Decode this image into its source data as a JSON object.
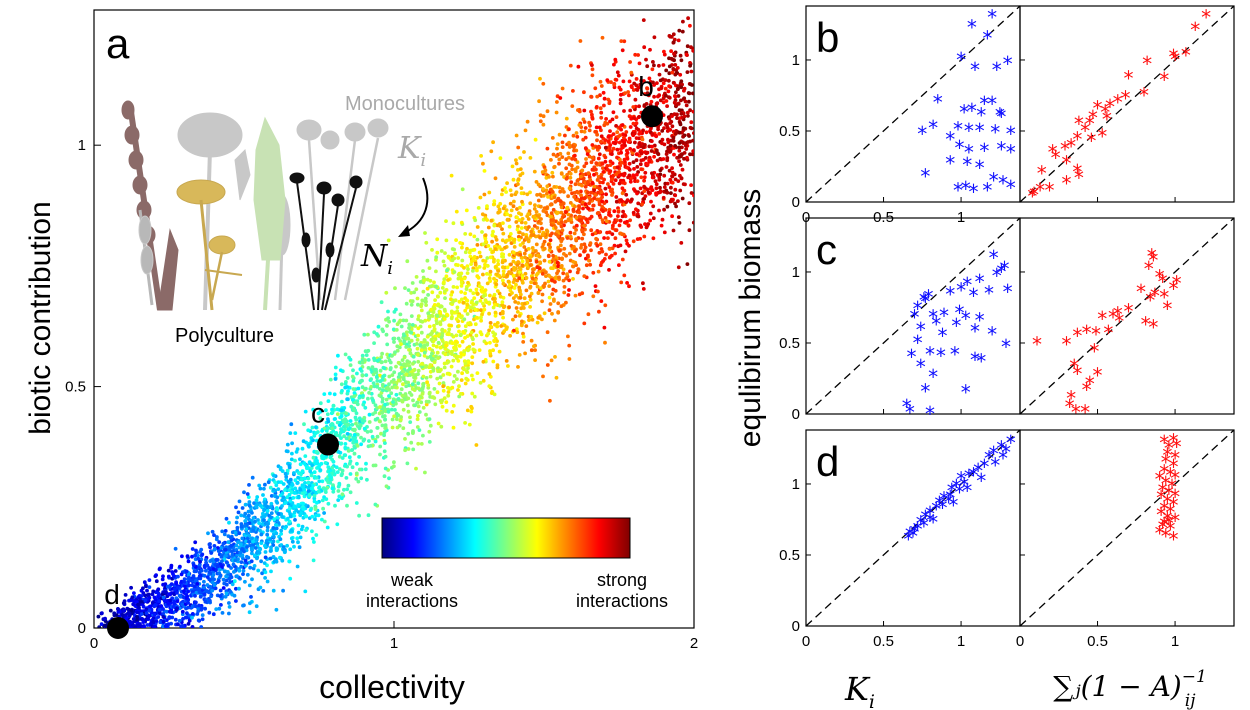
{
  "colors": {
    "mono_series": "#1010ff",
    "sum_series": "#ff1010",
    "marker": "#000000",
    "inset_gray": "#a9a9a9",
    "diag_line": "#000000"
  },
  "labels": {
    "panel_a": "a",
    "panel_b": "b",
    "panel_c": "c",
    "panel_d": "d",
    "point_b": "b",
    "point_c": "c",
    "point_d": "d",
    "monocultures": "Monocultures",
    "polyculture": "Polyculture",
    "K_i": "K",
    "K_sub": "i",
    "N_i": "N",
    "N_sub": "i",
    "colorbar_left": [
      "weak",
      "interactions"
    ],
    "colorbar_right": [
      "strong",
      "interactions"
    ],
    "right_ylabel": "equlibirum biomass",
    "right_xlabel_left_var": "K",
    "right_xlabel_left_sub": "i",
    "right_xlabel_right": "∑ⱼ(1 − A)",
    "right_xlabel_right_sup": "−1",
    "right_xlabel_right_sub": "ij"
  },
  "chart_data": [
    {
      "type": "scatter",
      "panel": "a",
      "xlabel": "collectivity",
      "ylabel": "biotic contribution",
      "xlim": [
        0,
        2
      ],
      "ylim": [
        0,
        1.28
      ],
      "xticks": [
        "0",
        "1",
        "2"
      ],
      "yticks": [
        "0",
        "0.5",
        "1"
      ],
      "grid": false,
      "colorbar": {
        "colormap": "jet",
        "low_label": "weak interactions",
        "high_label": "strong interactions",
        "placement": "bottom-right"
      },
      "approx_point_count": 5000,
      "cloud_trend": [
        [
          0.05,
          0.0
        ],
        [
          0.3,
          0.07
        ],
        [
          0.6,
          0.22
        ],
        [
          0.9,
          0.45
        ],
        [
          1.2,
          0.64
        ],
        [
          1.5,
          0.82
        ],
        [
          1.8,
          0.98
        ],
        [
          2.0,
          1.07
        ]
      ],
      "highlighted_points": [
        {
          "label": "b",
          "x": 1.86,
          "y": 1.06
        },
        {
          "label": "c",
          "x": 0.78,
          "y": 0.38
        },
        {
          "label": "d",
          "x": 0.08,
          "y": 0.0
        }
      ]
    },
    {
      "type": "scatter",
      "panel": "b",
      "grid_position": "row 1",
      "xlim": [
        0,
        1.38
      ],
      "ylim": [
        0,
        1.38
      ],
      "xticks": [
        "0",
        "0.5",
        "1"
      ],
      "yticks": [
        "0",
        "0.5",
        "1"
      ],
      "diagonal": "y=x dashed",
      "series": [
        {
          "name": "",
          "marker": "*",
          "color": "blue",
          "points": [
            [
              1.2,
              1.3
            ],
            [
              0.85,
              0.7
            ],
            [
              1.07,
              1.23
            ],
            [
              1.17,
              1.15
            ],
            [
              1.3,
              0.97
            ],
            [
              1.23,
              0.93
            ],
            [
              1.0,
              1.0
            ],
            [
              1.09,
              0.93
            ],
            [
              1.15,
              0.69
            ],
            [
              1.07,
              0.64
            ],
            [
              1.2,
              0.69
            ],
            [
              1.25,
              0.61
            ],
            [
              1.26,
              0.6
            ],
            [
              1.02,
              0.63
            ],
            [
              1.13,
              0.61
            ],
            [
              0.82,
              0.52
            ],
            [
              0.98,
              0.51
            ],
            [
              0.75,
              0.48
            ],
            [
              1.05,
              0.5
            ],
            [
              1.12,
              0.5
            ],
            [
              1.22,
              0.49
            ],
            [
              1.32,
              0.48
            ],
            [
              0.93,
              0.44
            ],
            [
              0.99,
              0.38
            ],
            [
              1.26,
              0.37
            ],
            [
              1.05,
              0.35
            ],
            [
              1.15,
              0.36
            ],
            [
              1.32,
              0.35
            ],
            [
              0.93,
              0.27
            ],
            [
              1.04,
              0.26
            ],
            [
              1.12,
              0.24
            ],
            [
              0.77,
              0.18
            ],
            [
              1.21,
              0.15
            ],
            [
              1.27,
              0.13
            ],
            [
              0.98,
              0.08
            ],
            [
              1.03,
              0.09
            ],
            [
              1.17,
              0.08
            ],
            [
              1.32,
              0.1
            ],
            [
              1.08,
              0.07
            ]
          ]
        }
      ]
    },
    {
      "type": "scatter",
      "panel": "b",
      "grid_position": "row 1 right",
      "xlim": [
        0,
        1.38
      ],
      "ylim": [
        0,
        1.38
      ],
      "xticks": [],
      "yticks": [],
      "diagonal": "y=x dashed",
      "series": [
        {
          "name": "",
          "marker": "*",
          "color": "red",
          "points": [
            [
              1.2,
              1.3
            ],
            [
              1.13,
              1.21
            ],
            [
              1.07,
              1.03
            ],
            [
              1.0,
              1.0
            ],
            [
              0.99,
              1.02
            ],
            [
              0.82,
              0.97
            ],
            [
              0.93,
              0.86
            ],
            [
              0.7,
              0.87
            ],
            [
              0.8,
              0.75
            ],
            [
              0.68,
              0.73
            ],
            [
              0.63,
              0.7
            ],
            [
              0.58,
              0.67
            ],
            [
              0.5,
              0.66
            ],
            [
              0.55,
              0.63
            ],
            [
              0.47,
              0.59
            ],
            [
              0.56,
              0.58
            ],
            [
              0.45,
              0.55
            ],
            [
              0.38,
              0.55
            ],
            [
              0.42,
              0.5
            ],
            [
              0.37,
              0.44
            ],
            [
              0.33,
              0.39
            ],
            [
              0.29,
              0.37
            ],
            [
              0.21,
              0.35
            ],
            [
              0.23,
              0.31
            ],
            [
              0.3,
              0.27
            ],
            [
              0.37,
              0.21
            ],
            [
              0.38,
              0.17
            ],
            [
              0.14,
              0.2
            ],
            [
              0.3,
              0.13
            ],
            [
              0.19,
              0.08
            ],
            [
              0.13,
              0.08
            ],
            [
              0.09,
              0.05
            ],
            [
              0.08,
              0.04
            ],
            [
              0.46,
              0.43
            ],
            [
              0.53,
              0.46
            ]
          ]
        }
      ]
    },
    {
      "type": "scatter",
      "panel": "c",
      "grid_position": "row 2 left",
      "xlim": [
        0,
        1.38
      ],
      "ylim": [
        0,
        1.38
      ],
      "xticks": [],
      "yticks": [
        "0",
        "0.5",
        "1"
      ],
      "diagonal": "y=x dashed",
      "series": [
        {
          "name": "",
          "marker": "*",
          "color": "blue",
          "points": [
            [
              1.21,
              1.1
            ],
            [
              1.28,
              1.02
            ],
            [
              1.23,
              0.97
            ],
            [
              1.26,
              1.0
            ],
            [
              1.12,
              0.93
            ],
            [
              1.04,
              0.91
            ],
            [
              1.0,
              0.87
            ],
            [
              0.93,
              0.84
            ],
            [
              1.18,
              0.85
            ],
            [
              1.08,
              0.83
            ],
            [
              1.3,
              0.86
            ],
            [
              0.79,
              0.82
            ],
            [
              0.77,
              0.79
            ],
            [
              0.76,
              0.8
            ],
            [
              0.72,
              0.74
            ],
            [
              0.7,
              0.68
            ],
            [
              0.82,
              0.68
            ],
            [
              0.89,
              0.69
            ],
            [
              0.99,
              0.71
            ],
            [
              1.03,
              0.67
            ],
            [
              1.12,
              0.66
            ],
            [
              0.84,
              0.63
            ],
            [
              0.97,
              0.62
            ],
            [
              0.74,
              0.59
            ],
            [
              0.88,
              0.55
            ],
            [
              1.09,
              0.58
            ],
            [
              0.72,
              0.5
            ],
            [
              1.2,
              0.56
            ],
            [
              1.29,
              0.47
            ],
            [
              0.8,
              0.42
            ],
            [
              0.87,
              0.41
            ],
            [
              0.96,
              0.42
            ],
            [
              0.68,
              0.4
            ],
            [
              1.09,
              0.38
            ],
            [
              0.74,
              0.33
            ],
            [
              1.13,
              0.37
            ],
            [
              0.82,
              0.26
            ],
            [
              1.03,
              0.15
            ],
            [
              0.77,
              0.16
            ],
            [
              0.65,
              0.05
            ],
            [
              0.67,
              0.01
            ],
            [
              0.8,
              0.0
            ]
          ]
        }
      ]
    },
    {
      "type": "scatter",
      "panel": "c",
      "grid_position": "row 2 right",
      "xlim": [
        0,
        1.38
      ],
      "ylim": [
        0,
        1.38
      ],
      "xticks": [],
      "yticks": [],
      "diagonal": "y=x dashed",
      "series": [
        {
          "name": "",
          "marker": "*",
          "color": "red",
          "points": [
            [
              0.85,
              1.11
            ],
            [
              0.86,
              1.08
            ],
            [
              0.83,
              1.02
            ],
            [
              0.9,
              0.96
            ],
            [
              0.92,
              0.93
            ],
            [
              1.01,
              0.92
            ],
            [
              0.99,
              0.88
            ],
            [
              0.78,
              0.86
            ],
            [
              0.87,
              0.83
            ],
            [
              0.93,
              0.82
            ],
            [
              0.84,
              0.8
            ],
            [
              0.95,
              0.74
            ],
            [
              0.7,
              0.72
            ],
            [
              0.63,
              0.7
            ],
            [
              0.6,
              0.68
            ],
            [
              0.53,
              0.67
            ],
            [
              0.64,
              0.65
            ],
            [
              0.81,
              0.63
            ],
            [
              0.86,
              0.61
            ],
            [
              0.57,
              0.57
            ],
            [
              0.43,
              0.57
            ],
            [
              0.49,
              0.56
            ],
            [
              0.37,
              0.55
            ],
            [
              0.3,
              0.49
            ],
            [
              0.48,
              0.44
            ],
            [
              0.35,
              0.33
            ],
            [
              0.37,
              0.28
            ],
            [
              0.5,
              0.27
            ],
            [
              0.45,
              0.21
            ],
            [
              0.33,
              0.11
            ],
            [
              0.32,
              0.05
            ],
            [
              0.36,
              0.01
            ],
            [
              0.42,
              0.01
            ],
            [
              0.43,
              0.17
            ],
            [
              0.11,
              0.49
            ]
          ]
        }
      ]
    },
    {
      "type": "scatter",
      "panel": "d",
      "grid_position": "row 3 left",
      "xlabel": "K_i",
      "xlim": [
        0,
        1.38
      ],
      "ylim": [
        0,
        1.38
      ],
      "xticks": [
        "0",
        "0.5",
        "1"
      ],
      "yticks": [
        "0",
        "0.5",
        "1"
      ],
      "diagonal": "y=x dashed",
      "series": [
        {
          "name": "",
          "marker": "*",
          "color": "blue",
          "points": [
            [
              1.32,
              1.29
            ],
            [
              1.26,
              1.25
            ],
            [
              1.29,
              1.22
            ],
            [
              1.21,
              1.21
            ],
            [
              1.18,
              1.18
            ],
            [
              1.15,
              1.12
            ],
            [
              1.22,
              1.13
            ],
            [
              1.08,
              1.06
            ],
            [
              1.05,
              1.05
            ],
            [
              1.11,
              1.09
            ],
            [
              1.0,
              1.03
            ],
            [
              0.97,
              0.98
            ],
            [
              1.02,
              0.99
            ],
            [
              0.94,
              0.95
            ],
            [
              0.99,
              0.94
            ],
            [
              0.93,
              0.9
            ],
            [
              0.89,
              0.89
            ],
            [
              0.92,
              0.87
            ],
            [
              0.86,
              0.86
            ],
            [
              0.84,
              0.82
            ],
            [
              0.88,
              0.83
            ],
            [
              0.8,
              0.79
            ],
            [
              0.77,
              0.76
            ],
            [
              0.8,
              0.74
            ],
            [
              0.74,
              0.72
            ],
            [
              0.76,
              0.7
            ],
            [
              0.72,
              0.68
            ],
            [
              0.7,
              0.66
            ],
            [
              0.67,
              0.64
            ],
            [
              0.66,
              0.61
            ],
            [
              0.69,
              0.63
            ],
            [
              0.82,
              0.73
            ],
            [
              0.95,
              0.85
            ],
            [
              1.04,
              0.95
            ],
            [
              1.13,
              1.02
            ],
            [
              1.27,
              1.18
            ]
          ]
        }
      ]
    },
    {
      "type": "scatter",
      "panel": "d",
      "grid_position": "row 3 right",
      "xlabel": "∑_j (1 − A)^−1_ij",
      "xlim": [
        0,
        1.38
      ],
      "ylim": [
        0,
        1.38
      ],
      "xticks": [
        "0",
        "0.5",
        "1"
      ],
      "yticks": [],
      "diagonal": "y=x dashed",
      "series": [
        {
          "name": "",
          "marker": "*",
          "color": "red",
          "points": [
            [
              0.93,
              1.29
            ],
            [
              0.99,
              1.3
            ],
            [
              0.96,
              1.25
            ],
            [
              1.01,
              1.26
            ],
            [
              0.95,
              1.2
            ],
            [
              1.0,
              1.18
            ],
            [
              0.94,
              1.15
            ],
            [
              0.99,
              1.12
            ],
            [
              0.93,
              1.08
            ],
            [
              0.97,
              1.06
            ],
            [
              1.0,
              1.04
            ],
            [
              0.9,
              1.03
            ],
            [
              0.94,
              1.0
            ],
            [
              0.98,
              0.98
            ],
            [
              0.92,
              0.95
            ],
            [
              0.96,
              0.93
            ],
            [
              1.0,
              0.91
            ],
            [
              0.91,
              0.9
            ],
            [
              0.95,
              0.87
            ],
            [
              0.99,
              0.85
            ],
            [
              0.93,
              0.82
            ],
            [
              0.97,
              0.8
            ],
            [
              0.91,
              0.78
            ],
            [
              0.95,
              0.75
            ],
            [
              1.0,
              0.74
            ],
            [
              0.93,
              0.71
            ],
            [
              0.97,
              0.68
            ],
            [
              0.9,
              0.65
            ],
            [
              0.94,
              0.63
            ],
            [
              0.99,
              0.61
            ],
            [
              0.92,
              0.69
            ],
            [
              0.96,
              0.72
            ]
          ]
        }
      ]
    }
  ]
}
